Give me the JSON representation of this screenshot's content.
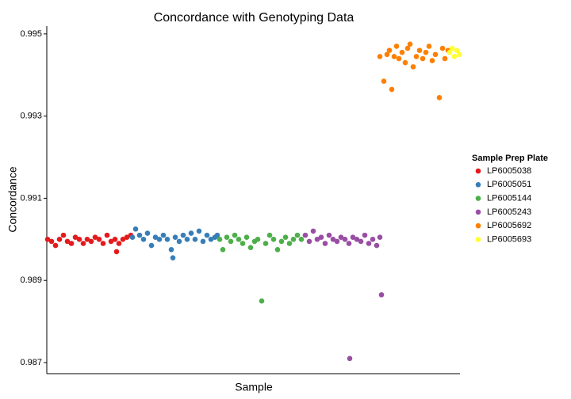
{
  "chart_data": {
    "type": "scatter",
    "title": "Concordance with Genotyping Data",
    "x_label": "Sample",
    "y_label": "Concordance",
    "legend_title": "Sample Prep Plate",
    "legend": "right",
    "xlim": [
      0,
      521
    ],
    "ylim": [
      0.98673,
      0.99519
    ],
    "yticks": [
      0.987,
      0.989,
      0.991,
      0.993,
      0.995
    ],
    "series": [
      {
        "name": "LP6005038",
        "color": "#E41A1C",
        "x": [
          1,
          6,
          11,
          16,
          21,
          26,
          31,
          36,
          41,
          46,
          51,
          56,
          61,
          66,
          71,
          76,
          81,
          86,
          88,
          91,
          96,
          101,
          106
        ],
        "values": [
          0.99,
          0.98995,
          0.98985,
          0.99,
          0.9901,
          0.98995,
          0.9899,
          0.99005,
          0.99,
          0.9899,
          0.99,
          0.98995,
          0.99005,
          0.99,
          0.9899,
          0.9901,
          0.98995,
          0.99,
          0.9897,
          0.9899,
          0.99,
          0.99005,
          0.9901
        ]
      },
      {
        "name": "LP6005051",
        "color": "#377EB8",
        "x": [
          108,
          112,
          117,
          122,
          127,
          132,
          137,
          142,
          147,
          152,
          157,
          159,
          162,
          167,
          172,
          177,
          182,
          187,
          192,
          197,
          202,
          207,
          212,
          215
        ],
        "values": [
          0.99005,
          0.99025,
          0.9901,
          0.99,
          0.99015,
          0.98985,
          0.99005,
          0.99,
          0.9901,
          0.99,
          0.98975,
          0.98955,
          0.99005,
          0.98995,
          0.9901,
          0.99,
          0.99015,
          0.99,
          0.9902,
          0.98995,
          0.9901,
          0.99,
          0.99005,
          0.9901
        ]
      },
      {
        "name": "LP6005144",
        "color": "#4DAF4A",
        "x": [
          218,
          222,
          227,
          232,
          237,
          242,
          247,
          252,
          257,
          262,
          266,
          271,
          276,
          281,
          286,
          291,
          296,
          301,
          306,
          311,
          316,
          321
        ],
        "values": [
          0.99,
          0.98975,
          0.99005,
          0.98995,
          0.9901,
          0.99,
          0.9899,
          0.99005,
          0.9898,
          0.98995,
          0.99,
          0.9885,
          0.9899,
          0.9901,
          0.99,
          0.98975,
          0.98995,
          0.99005,
          0.9899,
          0.99,
          0.9901,
          0.99
        ]
      },
      {
        "name": "LP6005243",
        "color": "#984EA3",
        "x": [
          326,
          331,
          336,
          341,
          346,
          351,
          356,
          361,
          366,
          371,
          376,
          381,
          382,
          386,
          391,
          396,
          401,
          406,
          411,
          416,
          420,
          422
        ],
        "values": [
          0.9901,
          0.98995,
          0.9902,
          0.99,
          0.99005,
          0.9899,
          0.9901,
          0.99,
          0.98995,
          0.99005,
          0.99,
          0.9899,
          0.9871,
          0.99005,
          0.99,
          0.98995,
          0.9901,
          0.9899,
          0.99,
          0.98985,
          0.99005,
          0.98865
        ]
      },
      {
        "name": "LP6005692",
        "color": "#FF7F00",
        "x": [
          420,
          425,
          429,
          432,
          435,
          438,
          441,
          444,
          448,
          452,
          455,
          458,
          462,
          466,
          470,
          474,
          478,
          482,
          486,
          490,
          495,
          499,
          502,
          506
        ],
        "values": [
          0.99445,
          0.99385,
          0.9945,
          0.9946,
          0.99365,
          0.99445,
          0.9947,
          0.9944,
          0.99455,
          0.9943,
          0.99465,
          0.99475,
          0.9942,
          0.99445,
          0.9946,
          0.9944,
          0.99455,
          0.9947,
          0.99435,
          0.9945,
          0.99345,
          0.99465,
          0.9944,
          0.9946
        ]
      },
      {
        "name": "LP6005693",
        "color": "#FFFF33",
        "x": [
          508,
          511,
          514,
          517,
          520
        ],
        "values": [
          0.99455,
          0.99465,
          0.99445,
          0.9946,
          0.9945
        ]
      }
    ]
  }
}
